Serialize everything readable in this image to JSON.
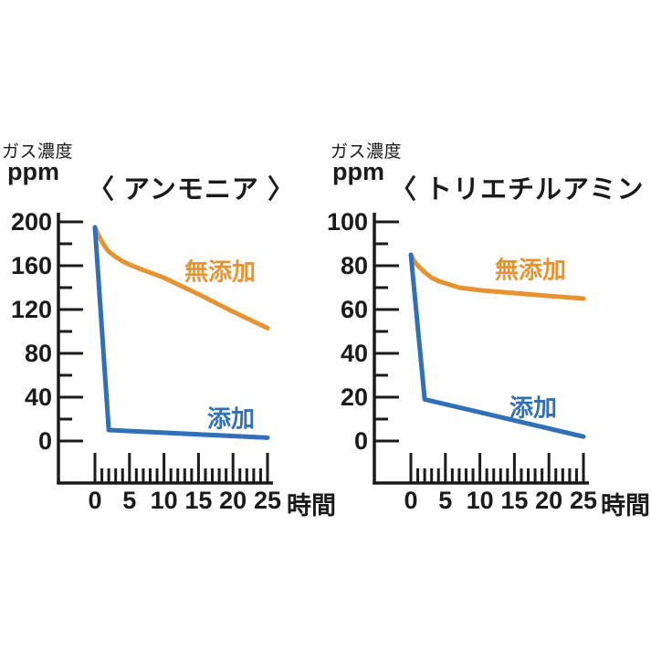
{
  "colors": {
    "background": "#ffffff",
    "axis": "#1b1b1b",
    "text": "#1b1b1b",
    "no_additive_orange": "#E7932F",
    "additive_blue": "#3170B9"
  },
  "chart_data": [
    {
      "type": "line",
      "title": "〈 アンモニア 〉",
      "ylabel_line1": "ガス濃度",
      "ylabel_line2": "ppm",
      "xlabel": "時間",
      "ylim": [
        0,
        200
      ],
      "ytick_major_step": 40,
      "ytick_minor_step": 20,
      "xlim": [
        0,
        25
      ],
      "xtick_major_step": 5,
      "xtick_minor_step": 1,
      "grid": false,
      "series": [
        {
          "name": "無添加",
          "color": "#E7932F",
          "x": [
            0,
            0.5,
            1,
            1.5,
            2,
            3,
            4,
            5,
            7,
            10,
            15,
            20,
            25
          ],
          "y": [
            195,
            188,
            182,
            177,
            173,
            168,
            164,
            161,
            156,
            149,
            134,
            118,
            103
          ]
        },
        {
          "name": "添加",
          "color": "#3170B9",
          "x": [
            0,
            2,
            25
          ],
          "y": [
            195,
            10,
            3
          ]
        }
      ]
    },
    {
      "type": "line",
      "title": "〈 トリエチルアミン 〉",
      "ylabel_line1": "ガス濃度",
      "ylabel_line2": "ppm",
      "xlabel": "時間",
      "ylim": [
        0,
        100
      ],
      "ytick_major_step": 20,
      "ytick_minor_step": 10,
      "xlim": [
        0,
        25
      ],
      "xtick_major_step": 5,
      "xtick_minor_step": 1,
      "grid": false,
      "series": [
        {
          "name": "無添加",
          "color": "#E7932F",
          "x": [
            0,
            0.5,
            1,
            2,
            3,
            4,
            5,
            7,
            10,
            15,
            20,
            25
          ],
          "y": [
            85,
            82,
            80,
            77,
            74.5,
            73,
            72,
            70,
            68.8,
            67.5,
            66.2,
            65
          ]
        },
        {
          "name": "添加",
          "color": "#3170B9",
          "x": [
            0,
            2,
            25
          ],
          "y": [
            85,
            19,
            2
          ]
        }
      ]
    }
  ]
}
